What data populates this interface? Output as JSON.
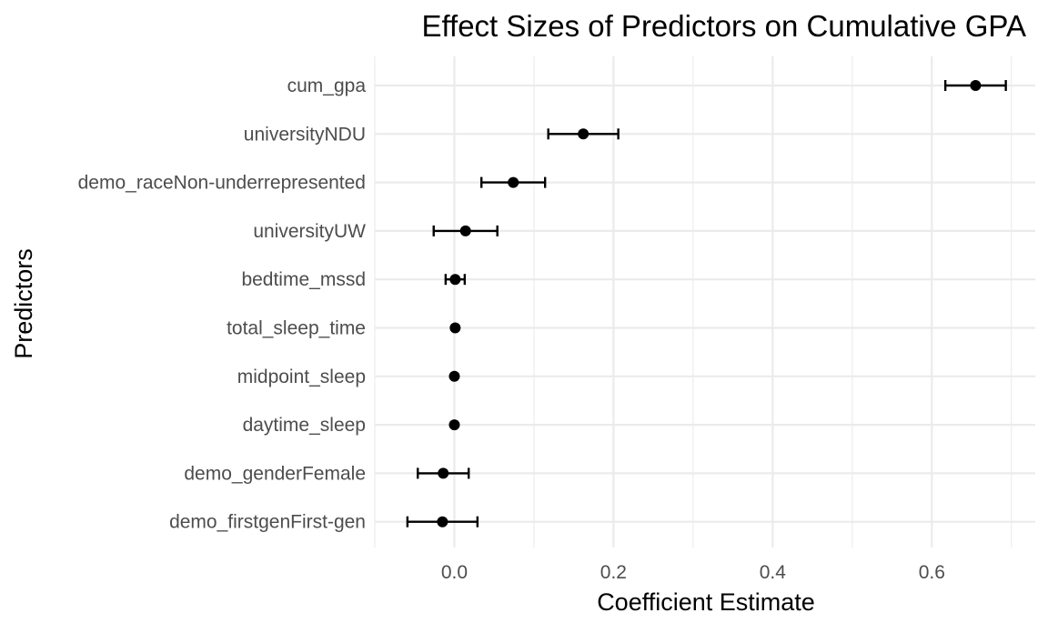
{
  "chart_data": {
    "type": "scatter",
    "title": "Effect Sizes of Predictors on Cumulative GPA",
    "xlabel": "Coefficient Estimate",
    "ylabel": "Predictors",
    "xlim": [
      -0.1,
      0.73
    ],
    "xticks": [
      0.0,
      0.2,
      0.4,
      0.6
    ],
    "xtick_labels": [
      "0.0",
      "0.2",
      "0.4",
      "0.6"
    ],
    "grid": true,
    "legend": "none",
    "point_color": "#000000",
    "predictors": [
      "cum_gpa",
      "universityNDU",
      "demo_raceNon-underrepresented",
      "universityUW",
      "bedtime_mssd",
      "total_sleep_time",
      "midpoint_sleep",
      "daytime_sleep",
      "demo_genderFemale",
      "demo_firstgenFirst-gen"
    ],
    "estimates": [
      0.655,
      0.162,
      0.074,
      0.014,
      0.001,
      0.001,
      0.0,
      0.0,
      -0.014,
      -0.015
    ],
    "lower": [
      0.617,
      0.118,
      0.034,
      -0.026,
      -0.011,
      0.001,
      0.0,
      0.0,
      -0.046,
      -0.059
    ],
    "upper": [
      0.693,
      0.206,
      0.114,
      0.054,
      0.013,
      0.001,
      0.0,
      0.0,
      0.018,
      0.029
    ]
  }
}
